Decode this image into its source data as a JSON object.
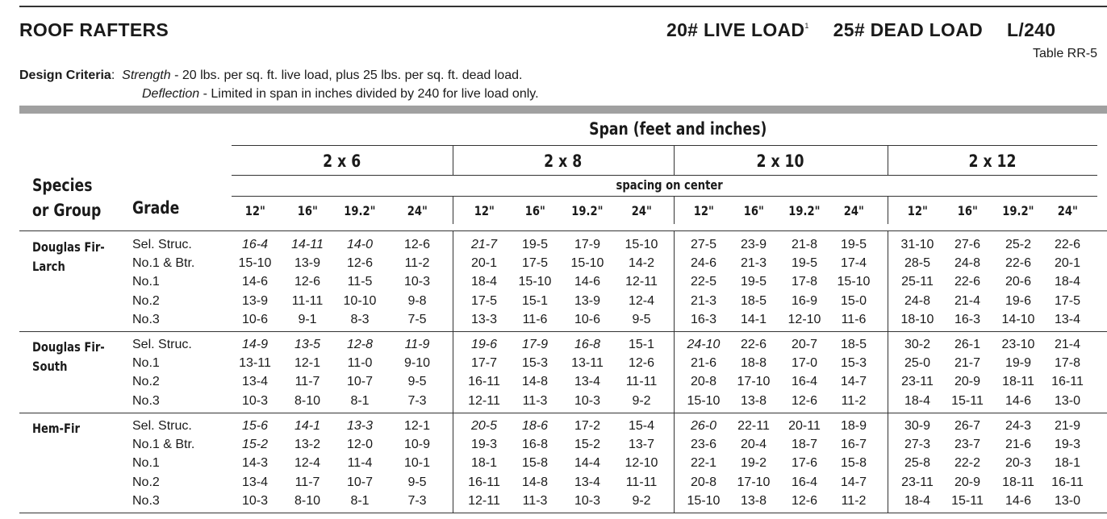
{
  "header": {
    "title": "ROOF RAFTERS",
    "live_load": "20# LIVE LOAD",
    "live_load_note": "1",
    "dead_load": "25# DEAD LOAD",
    "deflection_limit": "L/240",
    "table_id": "Table  RR-5"
  },
  "criteria": {
    "label": "Design Criteria",
    "strength_label": "Strength",
    "strength_text": " - 20 lbs. per sq. ft. live load, plus 25 lbs. per sq. ft. dead load.",
    "deflection_label": "Deflection",
    "deflection_text": " - Limited in span in inches divided by 240 for live load only."
  },
  "table": {
    "span_heading": "Span (feet and inches)",
    "spacing_heading": "spacing on center",
    "species_heading_1": "Species",
    "species_heading_2": "or Group",
    "grade_heading": "Grade",
    "sizes": [
      "2 x 6",
      "2 x 8",
      "2 x 10",
      "2 x 12"
    ],
    "spacings": [
      "12\"",
      "16\"",
      "19.2\"",
      "24\""
    ],
    "groups": [
      {
        "species": [
          "Douglas Fir-",
          "Larch"
        ],
        "rows": [
          {
            "grade": "Sel. Struc.",
            "values": [
              "16-4",
              "14-11",
              "14-0",
              "12-6",
              "21-7",
              "19-5",
              "17-9",
              "15-10",
              "27-5",
              "23-9",
              "21-8",
              "19-5",
              "31-10",
              "27-6",
              "25-2",
              "22-6"
            ],
            "italic": [
              0,
              1,
              2,
              4
            ]
          },
          {
            "grade": "No.1 & Btr.",
            "values": [
              "15-10",
              "13-9",
              "12-6",
              "11-2",
              "20-1",
              "17-5",
              "15-10",
              "14-2",
              "24-6",
              "21-3",
              "19-5",
              "17-4",
              "28-5",
              "24-8",
              "22-6",
              "20-1"
            ],
            "italic": []
          },
          {
            "grade": "No.1",
            "values": [
              "14-6",
              "12-6",
              "11-5",
              "10-3",
              "18-4",
              "15-10",
              "14-6",
              "12-11",
              "22-5",
              "19-5",
              "17-8",
              "15-10",
              "25-11",
              "22-6",
              "20-6",
              "18-4"
            ],
            "italic": []
          },
          {
            "grade": "No.2",
            "values": [
              "13-9",
              "11-11",
              "10-10",
              "9-8",
              "17-5",
              "15-1",
              "13-9",
              "12-4",
              "21-3",
              "18-5",
              "16-9",
              "15-0",
              "24-8",
              "21-4",
              "19-6",
              "17-5"
            ],
            "italic": []
          },
          {
            "grade": "No.3",
            "values": [
              "10-6",
              "9-1",
              "8-3",
              "7-5",
              "13-3",
              "11-6",
              "10-6",
              "9-5",
              "16-3",
              "14-1",
              "12-10",
              "11-6",
              "18-10",
              "16-3",
              "14-10",
              "13-4"
            ],
            "italic": []
          }
        ]
      },
      {
        "species": [
          "Douglas Fir-",
          "South"
        ],
        "rows": [
          {
            "grade": "Sel. Struc.",
            "values": [
              "14-9",
              "13-5",
              "12-8",
              "11-9",
              "19-6",
              "17-9",
              "16-8",
              "15-1",
              "24-10",
              "22-6",
              "20-7",
              "18-5",
              "30-2",
              "26-1",
              "23-10",
              "21-4"
            ],
            "italic": [
              0,
              1,
              2,
              3,
              4,
              5,
              6,
              8
            ]
          },
          {
            "grade": "No.1",
            "values": [
              "13-11",
              "12-1",
              "11-0",
              "9-10",
              "17-7",
              "15-3",
              "13-11",
              "12-6",
              "21-6",
              "18-8",
              "17-0",
              "15-3",
              "25-0",
              "21-7",
              "19-9",
              "17-8"
            ],
            "italic": []
          },
          {
            "grade": "No.2",
            "values": [
              "13-4",
              "11-7",
              "10-7",
              "9-5",
              "16-11",
              "14-8",
              "13-4",
              "11-11",
              "20-8",
              "17-10",
              "16-4",
              "14-7",
              "23-11",
              "20-9",
              "18-11",
              "16-11"
            ],
            "italic": []
          },
          {
            "grade": "No.3",
            "values": [
              "10-3",
              "8-10",
              "8-1",
              "7-3",
              "12-11",
              "11-3",
              "10-3",
              "9-2",
              "15-10",
              "13-8",
              "12-6",
              "11-2",
              "18-4",
              "15-11",
              "14-6",
              "13-0"
            ],
            "italic": []
          }
        ]
      },
      {
        "species": [
          "Hem-Fir"
        ],
        "rows": [
          {
            "grade": "Sel. Struc.",
            "values": [
              "15-6",
              "14-1",
              "13-3",
              "12-1",
              "20-5",
              "18-6",
              "17-2",
              "15-4",
              "26-0",
              "22-11",
              "20-11",
              "18-9",
              "30-9",
              "26-7",
              "24-3",
              "21-9"
            ],
            "italic": [
              0,
              1,
              2,
              4,
              5,
              8
            ]
          },
          {
            "grade": "No.1 & Btr.",
            "values": [
              "15-2",
              "13-2",
              "12-0",
              "10-9",
              "19-3",
              "16-8",
              "15-2",
              "13-7",
              "23-6",
              "20-4",
              "18-7",
              "16-7",
              "27-3",
              "23-7",
              "21-6",
              "19-3"
            ],
            "italic": [
              0
            ]
          },
          {
            "grade": "No.1",
            "values": [
              "14-3",
              "12-4",
              "11-4",
              "10-1",
              "18-1",
              "15-8",
              "14-4",
              "12-10",
              "22-1",
              "19-2",
              "17-6",
              "15-8",
              "25-8",
              "22-2",
              "20-3",
              "18-1"
            ],
            "italic": []
          },
          {
            "grade": "No.2",
            "values": [
              "13-4",
              "11-7",
              "10-7",
              "9-5",
              "16-11",
              "14-8",
              "13-4",
              "11-11",
              "20-8",
              "17-10",
              "16-4",
              "14-7",
              "23-11",
              "20-9",
              "18-11",
              "16-11"
            ],
            "italic": []
          },
          {
            "grade": "No.3",
            "values": [
              "10-3",
              "8-10",
              "8-1",
              "7-3",
              "12-11",
              "11-3",
              "10-3",
              "9-2",
              "15-10",
              "13-8",
              "12-6",
              "11-2",
              "18-4",
              "15-11",
              "14-6",
              "13-0"
            ],
            "italic": []
          }
        ]
      }
    ]
  }
}
